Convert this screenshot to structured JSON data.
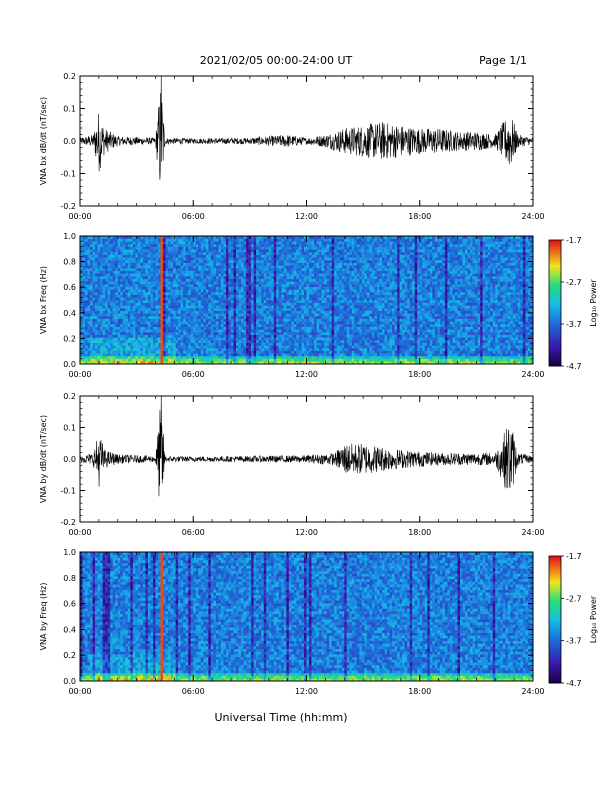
{
  "header": {
    "date_label": "2021/02/05  00:00-24:00 UT",
    "page_label": "Page 1/1"
  },
  "xlabel": "Universal Time (hh:mm)",
  "x_ticks": [
    "00:00",
    "06:00",
    "12:00",
    "18:00",
    "24:00"
  ],
  "colorbar": {
    "label": "Log₁₀ Power",
    "ticks": [
      "-1.7",
      "-2.7",
      "-3.7",
      "-4.7"
    ],
    "range": [
      -4.7,
      -1.7
    ]
  },
  "colors": {
    "line": "#000000",
    "background": "#ffffff",
    "spectrogram_base": "#1e6fd6",
    "spectrogram_low": "#3a1fb0",
    "spectrogram_high": "#f0e020"
  },
  "chart_data": [
    {
      "type": "line",
      "ylabel": "VNA bx dB/dt (nT/sec)",
      "y_ticks": [
        "0.2",
        "0.1",
        "0.0",
        "-0.1",
        "-0.2"
      ],
      "xlim": [
        0,
        24
      ],
      "ylim": [
        -0.2,
        0.2
      ],
      "series": [
        {
          "values_desc": "",
          "baseline": 0.0,
          "envelope_hours": [
            0,
            0.7,
            1.0,
            1.3,
            2,
            4,
            4.3,
            4.5,
            6,
            9,
            11,
            12,
            13,
            14,
            15,
            16,
            17,
            18,
            19,
            20,
            21,
            22,
            22.8,
            23.2,
            24
          ],
          "envelope_amplitude": [
            0.01,
            0.02,
            0.1,
            0.04,
            0.015,
            0.01,
            0.2,
            0.01,
            0.008,
            0.01,
            0.02,
            0.01,
            0.02,
            0.04,
            0.05,
            0.06,
            0.05,
            0.04,
            0.04,
            0.03,
            0.03,
            0.02,
            0.09,
            0.02,
            0.01
          ]
        }
      ]
    },
    {
      "type": "heatmap",
      "ylabel": "VNA bx Freq (Hz)",
      "y_ticks": [
        "1.0",
        "0.8",
        "0.6",
        "0.4",
        "0.2",
        "0.0"
      ],
      "xlim": [
        0,
        24
      ],
      "ylim": [
        0,
        1.0
      ],
      "zlim": [
        -4.7,
        -1.7
      ]
    },
    {
      "type": "line",
      "ylabel": "VNA by dB/dt (nT/sec)",
      "y_ticks": [
        "0.2",
        "0.1",
        "0.0",
        "-0.1",
        "-0.2"
      ],
      "xlim": [
        0,
        24
      ],
      "ylim": [
        -0.2,
        0.2
      ],
      "series": [
        {
          "values_desc": "",
          "baseline": 0.0,
          "envelope_hours": [
            0,
            0.7,
            1.0,
            1.3,
            2,
            4,
            4.3,
            4.5,
            6,
            9,
            12,
            13.5,
            14,
            15,
            16,
            17,
            18,
            19,
            20,
            21,
            22,
            22.8,
            23.2,
            24
          ],
          "envelope_amplitude": [
            0.01,
            0.02,
            0.09,
            0.03,
            0.015,
            0.01,
            0.2,
            0.01,
            0.008,
            0.01,
            0.012,
            0.02,
            0.05,
            0.05,
            0.04,
            0.03,
            0.025,
            0.02,
            0.02,
            0.02,
            0.02,
            0.13,
            0.02,
            0.01
          ]
        }
      ]
    },
    {
      "type": "heatmap",
      "ylabel": "VNA by Freq (Hz)",
      "y_ticks": [
        "1.0",
        "0.8",
        "0.6",
        "0.4",
        "0.2",
        "0.0"
      ],
      "xlim": [
        0,
        24
      ],
      "ylim": [
        0,
        1.0
      ],
      "zlim": [
        -4.7,
        -1.7
      ]
    }
  ]
}
